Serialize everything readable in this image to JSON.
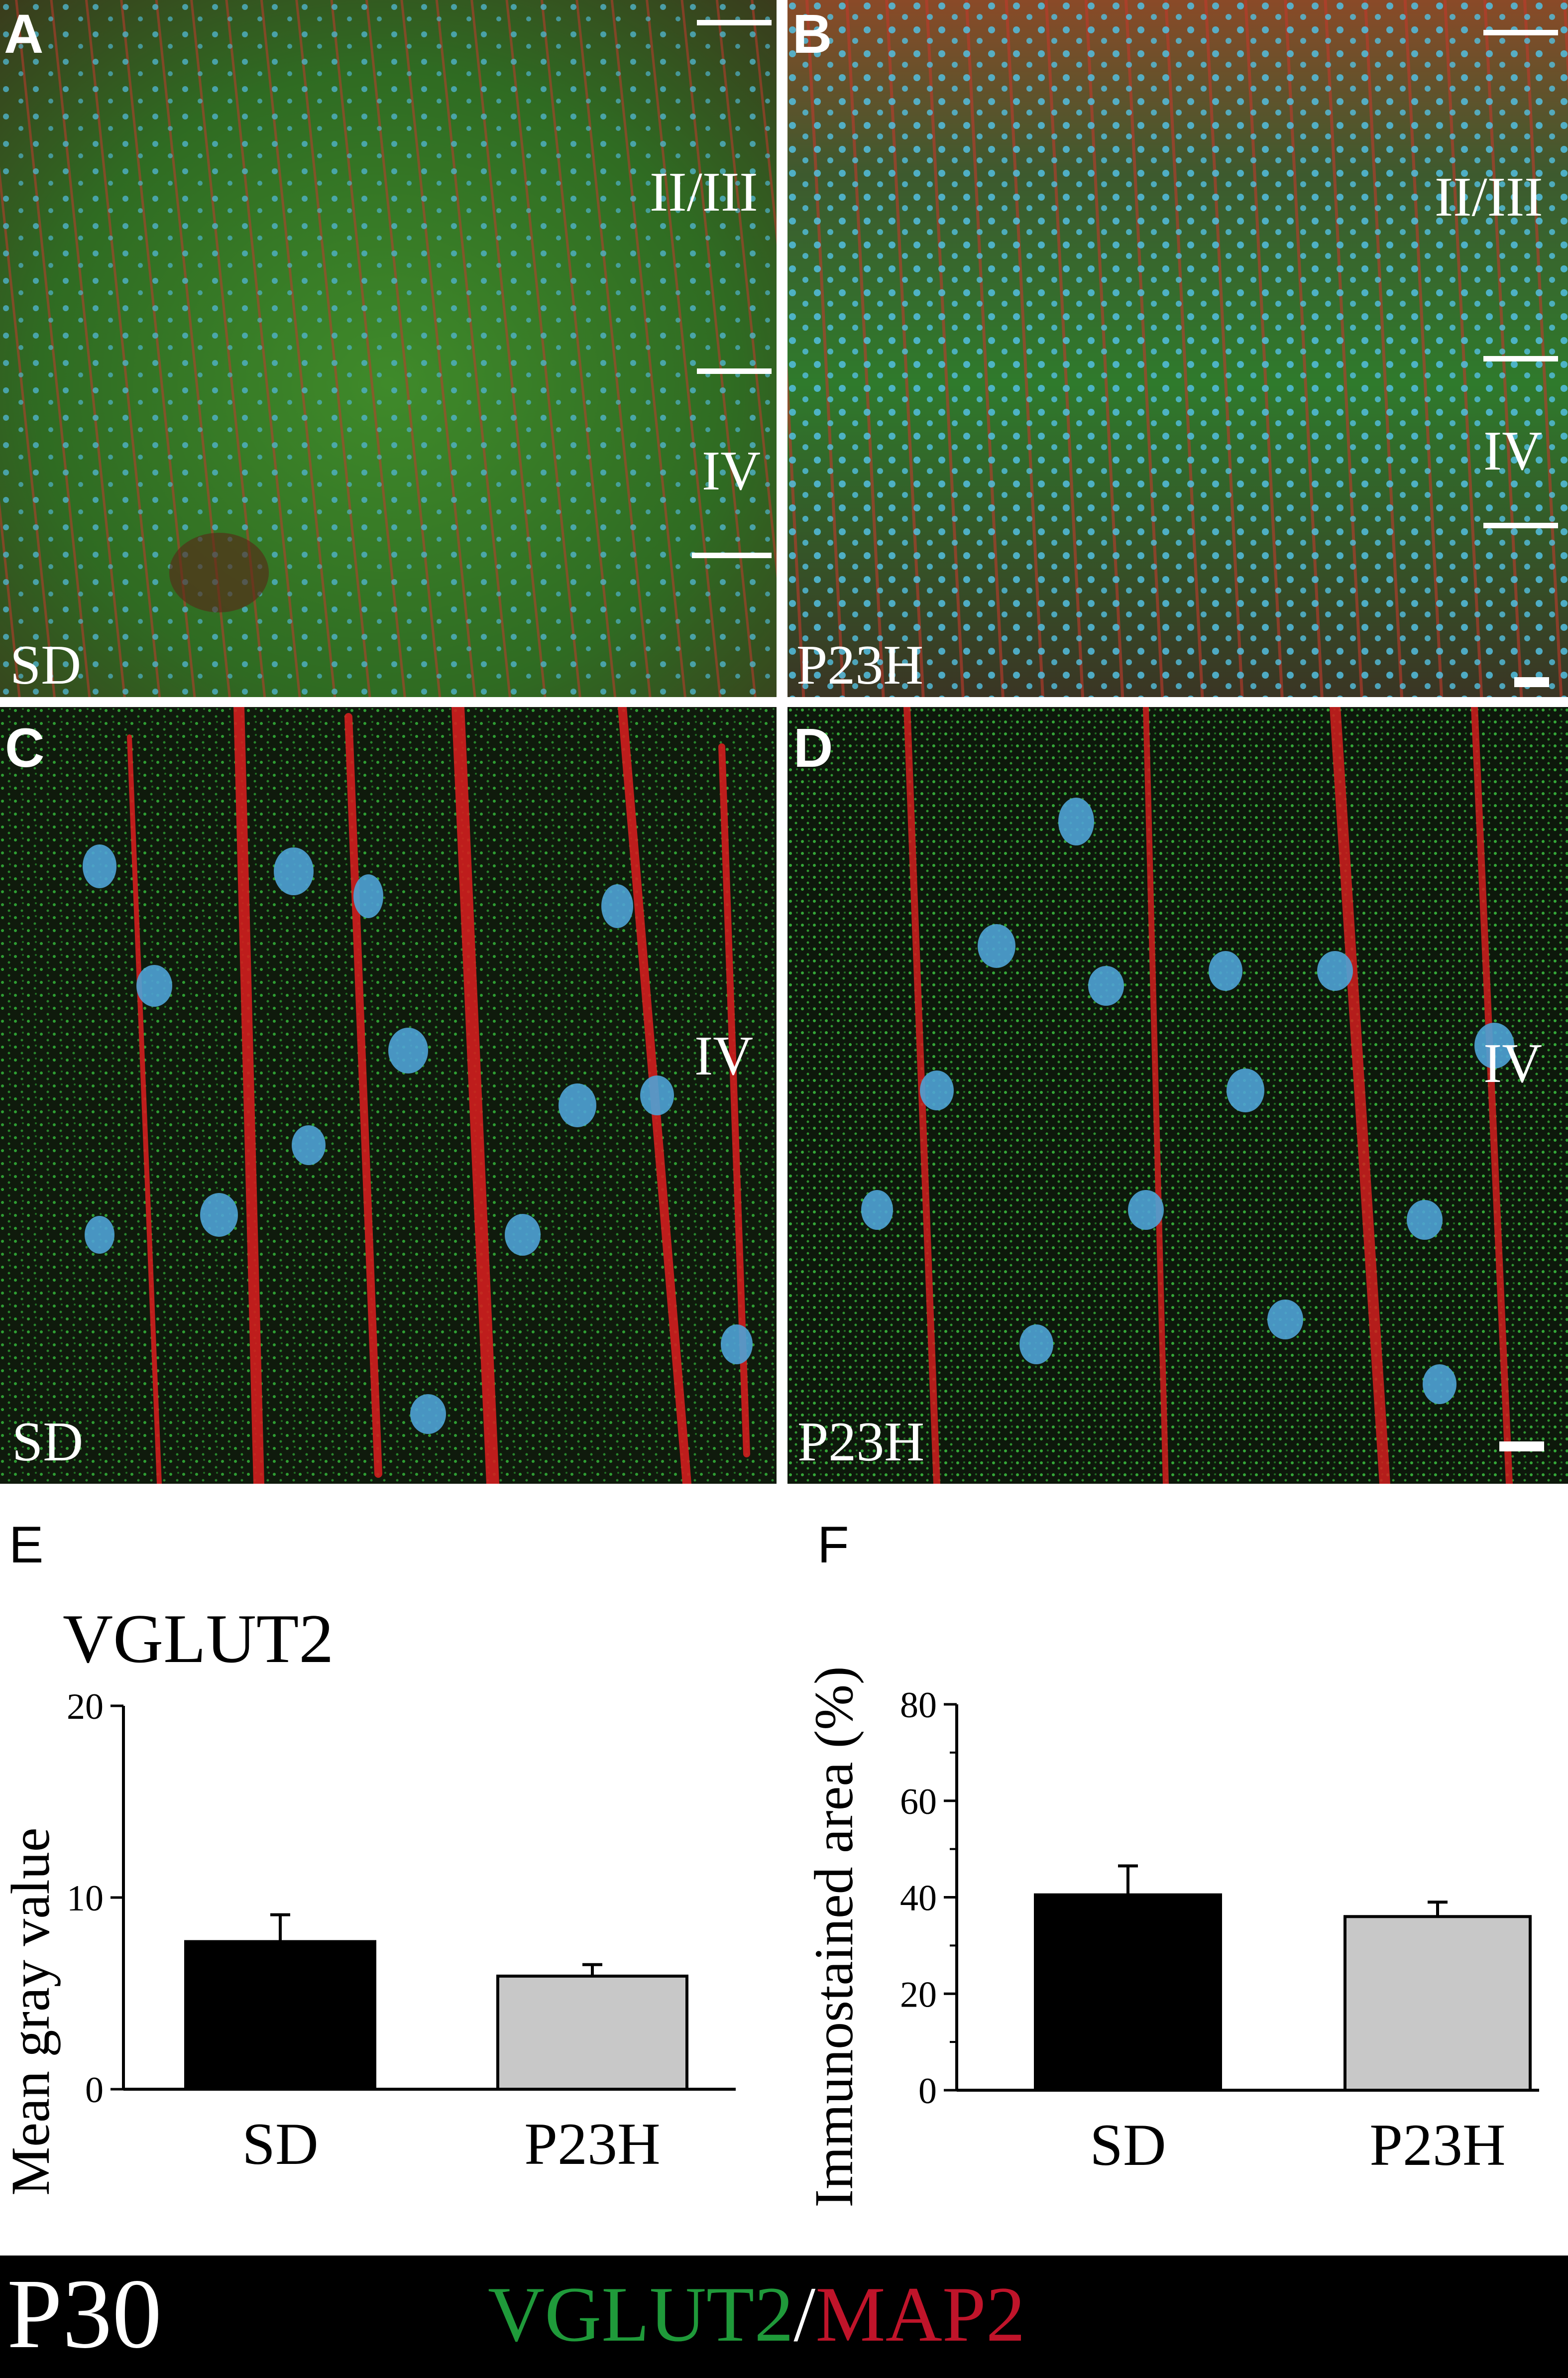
{
  "panels": {
    "A": {
      "label": "A",
      "group": "SD",
      "layers": [
        "II/III",
        "IV"
      ]
    },
    "B": {
      "label": "B",
      "group": "P23H",
      "layers": [
        "II/III",
        "IV"
      ]
    },
    "C": {
      "label": "C",
      "group": "SD",
      "layers": [
        "IV"
      ]
    },
    "D": {
      "label": "D",
      "group": "P23H",
      "layers": [
        "IV"
      ]
    }
  },
  "charts": {
    "E": {
      "label": "E"
    },
    "F": {
      "label": "F"
    }
  },
  "chart_data": [
    {
      "type": "bar",
      "title": "VGLUT2",
      "ylabel": "Mean gray value",
      "xlabel": "",
      "categories": [
        "SD",
        "P23H"
      ],
      "values": [
        7.7,
        5.9
      ],
      "errors": [
        1.4,
        0.6
      ],
      "colors": [
        "#000000",
        "#c8c8c8"
      ],
      "ylim": [
        0,
        20
      ],
      "yticks": [
        0,
        10,
        20
      ]
    },
    {
      "type": "bar",
      "title": "",
      "ylabel": "Immunostained area (%)",
      "xlabel": "",
      "categories": [
        "SD",
        "P23H"
      ],
      "values": [
        40.5,
        36.0
      ],
      "errors": [
        6.0,
        3.0
      ],
      "colors": [
        "#000000",
        "#c8c8c8"
      ],
      "ylim": [
        0,
        80
      ],
      "yticks": [
        0,
        20,
        40,
        60,
        80
      ]
    }
  ],
  "footer": {
    "age": "P30",
    "marker1": "VGLUT2",
    "separator": "/",
    "marker2": "MAP2",
    "marker1_color": "#1f9a3a",
    "marker2_color": "#c0142a"
  }
}
